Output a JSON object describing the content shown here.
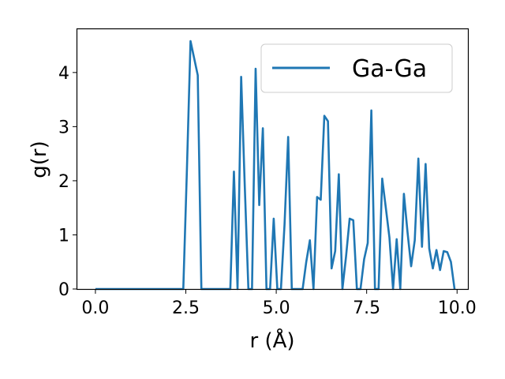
{
  "chart_data": {
    "type": "line",
    "title": "",
    "xlabel": "r (Å)",
    "ylabel": "g(r)",
    "xlim": [
      -0.5,
      10.3
    ],
    "ylim": [
      0,
      4.8
    ],
    "xticks": [
      0.0,
      2.5,
      5.0,
      7.5,
      10.0
    ],
    "xtick_labels": [
      "0.0",
      "2.5",
      "5.0",
      "7.5",
      "10.0"
    ],
    "yticks": [
      0,
      1,
      2,
      3,
      4
    ],
    "ytick_labels": [
      "0",
      "1",
      "2",
      "3",
      "4"
    ],
    "grid": false,
    "legend_position": "top-right",
    "series_color": "#1f77b4",
    "series": [
      {
        "name": "Ga-Ga",
        "x": [
          0.0,
          2.43,
          2.53,
          2.63,
          2.83,
          2.93,
          3.03,
          3.73,
          3.83,
          3.93,
          4.03,
          4.13,
          4.23,
          4.33,
          4.43,
          4.53,
          4.63,
          4.73,
          4.83,
          4.93,
          5.03,
          5.13,
          5.23,
          5.33,
          5.43,
          5.53,
          5.63,
          5.73,
          5.83,
          5.93,
          6.03,
          6.13,
          6.23,
          6.33,
          6.43,
          6.53,
          6.63,
          6.73,
          6.83,
          6.93,
          7.03,
          7.13,
          7.23,
          7.33,
          7.43,
          7.53,
          7.63,
          7.73,
          7.83,
          7.93,
          8.03,
          8.13,
          8.23,
          8.33,
          8.43,
          8.53,
          8.63,
          8.73,
          8.83,
          8.93,
          9.03,
          9.13,
          9.23,
          9.33,
          9.43,
          9.53,
          9.63,
          9.73,
          9.83,
          9.93
        ],
        "y": [
          0,
          0,
          2.2,
          4.58,
          3.95,
          0,
          0,
          0,
          2.17,
          0,
          3.92,
          1.9,
          0,
          0,
          4.07,
          1.55,
          2.97,
          0,
          0,
          1.3,
          0,
          0,
          1.2,
          2.81,
          0,
          0,
          0,
          0,
          0.5,
          0.9,
          0,
          1.7,
          1.65,
          3.2,
          3.1,
          0.38,
          0.7,
          2.12,
          0,
          0.6,
          1.3,
          1.27,
          0,
          0,
          0.55,
          0.85,
          3.3,
          0,
          0,
          2.04,
          1.5,
          0.95,
          0,
          0.92,
          0,
          1.76,
          1.05,
          0.42,
          0.9,
          2.41,
          0.78,
          2.31,
          0.75,
          0.38,
          0.72,
          0.35,
          0.7,
          0.68,
          0.5,
          0
        ]
      }
    ]
  }
}
